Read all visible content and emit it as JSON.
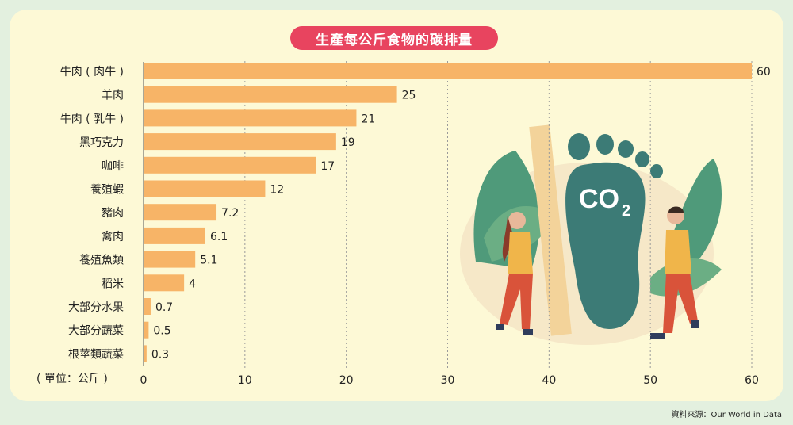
{
  "title": "生產每公斤食物的碳排量",
  "unit_label": "( 單位：公斤 )",
  "source": "資料來源：Our World in Data",
  "illustration": {
    "co2_text": "CO",
    "co2_sub": "2"
  },
  "colors": {
    "bar": "#f7b467",
    "title_bg": "#e8445f",
    "card_bg": "#fdf9d6",
    "page_bg": "#e3f0df"
  },
  "chart_data": {
    "type": "bar",
    "orientation": "horizontal",
    "categories": [
      "牛肉 ( 肉牛 )",
      "羊肉",
      "牛肉 ( 乳牛 )",
      "黑巧克力",
      "咖啡",
      "養殖蝦",
      "豬肉",
      "禽肉",
      "養殖魚類",
      "稻米",
      "大部分水果",
      "大部分蔬菜",
      "根莖類蔬菜"
    ],
    "values": [
      60,
      25,
      21,
      19,
      17,
      12,
      7.2,
      6.1,
      5.1,
      4,
      0.7,
      0.5,
      0.3
    ],
    "value_labels": [
      "60",
      "25",
      "21",
      "19",
      "17",
      "12",
      "7.2",
      "6.1",
      "5.1",
      "4",
      "0.7",
      "0.5",
      "0.3"
    ],
    "xlim": [
      0,
      60
    ],
    "xticks": [
      "0",
      "10",
      "20",
      "30",
      "40",
      "50",
      "60"
    ],
    "grid": "vertical dashed"
  }
}
